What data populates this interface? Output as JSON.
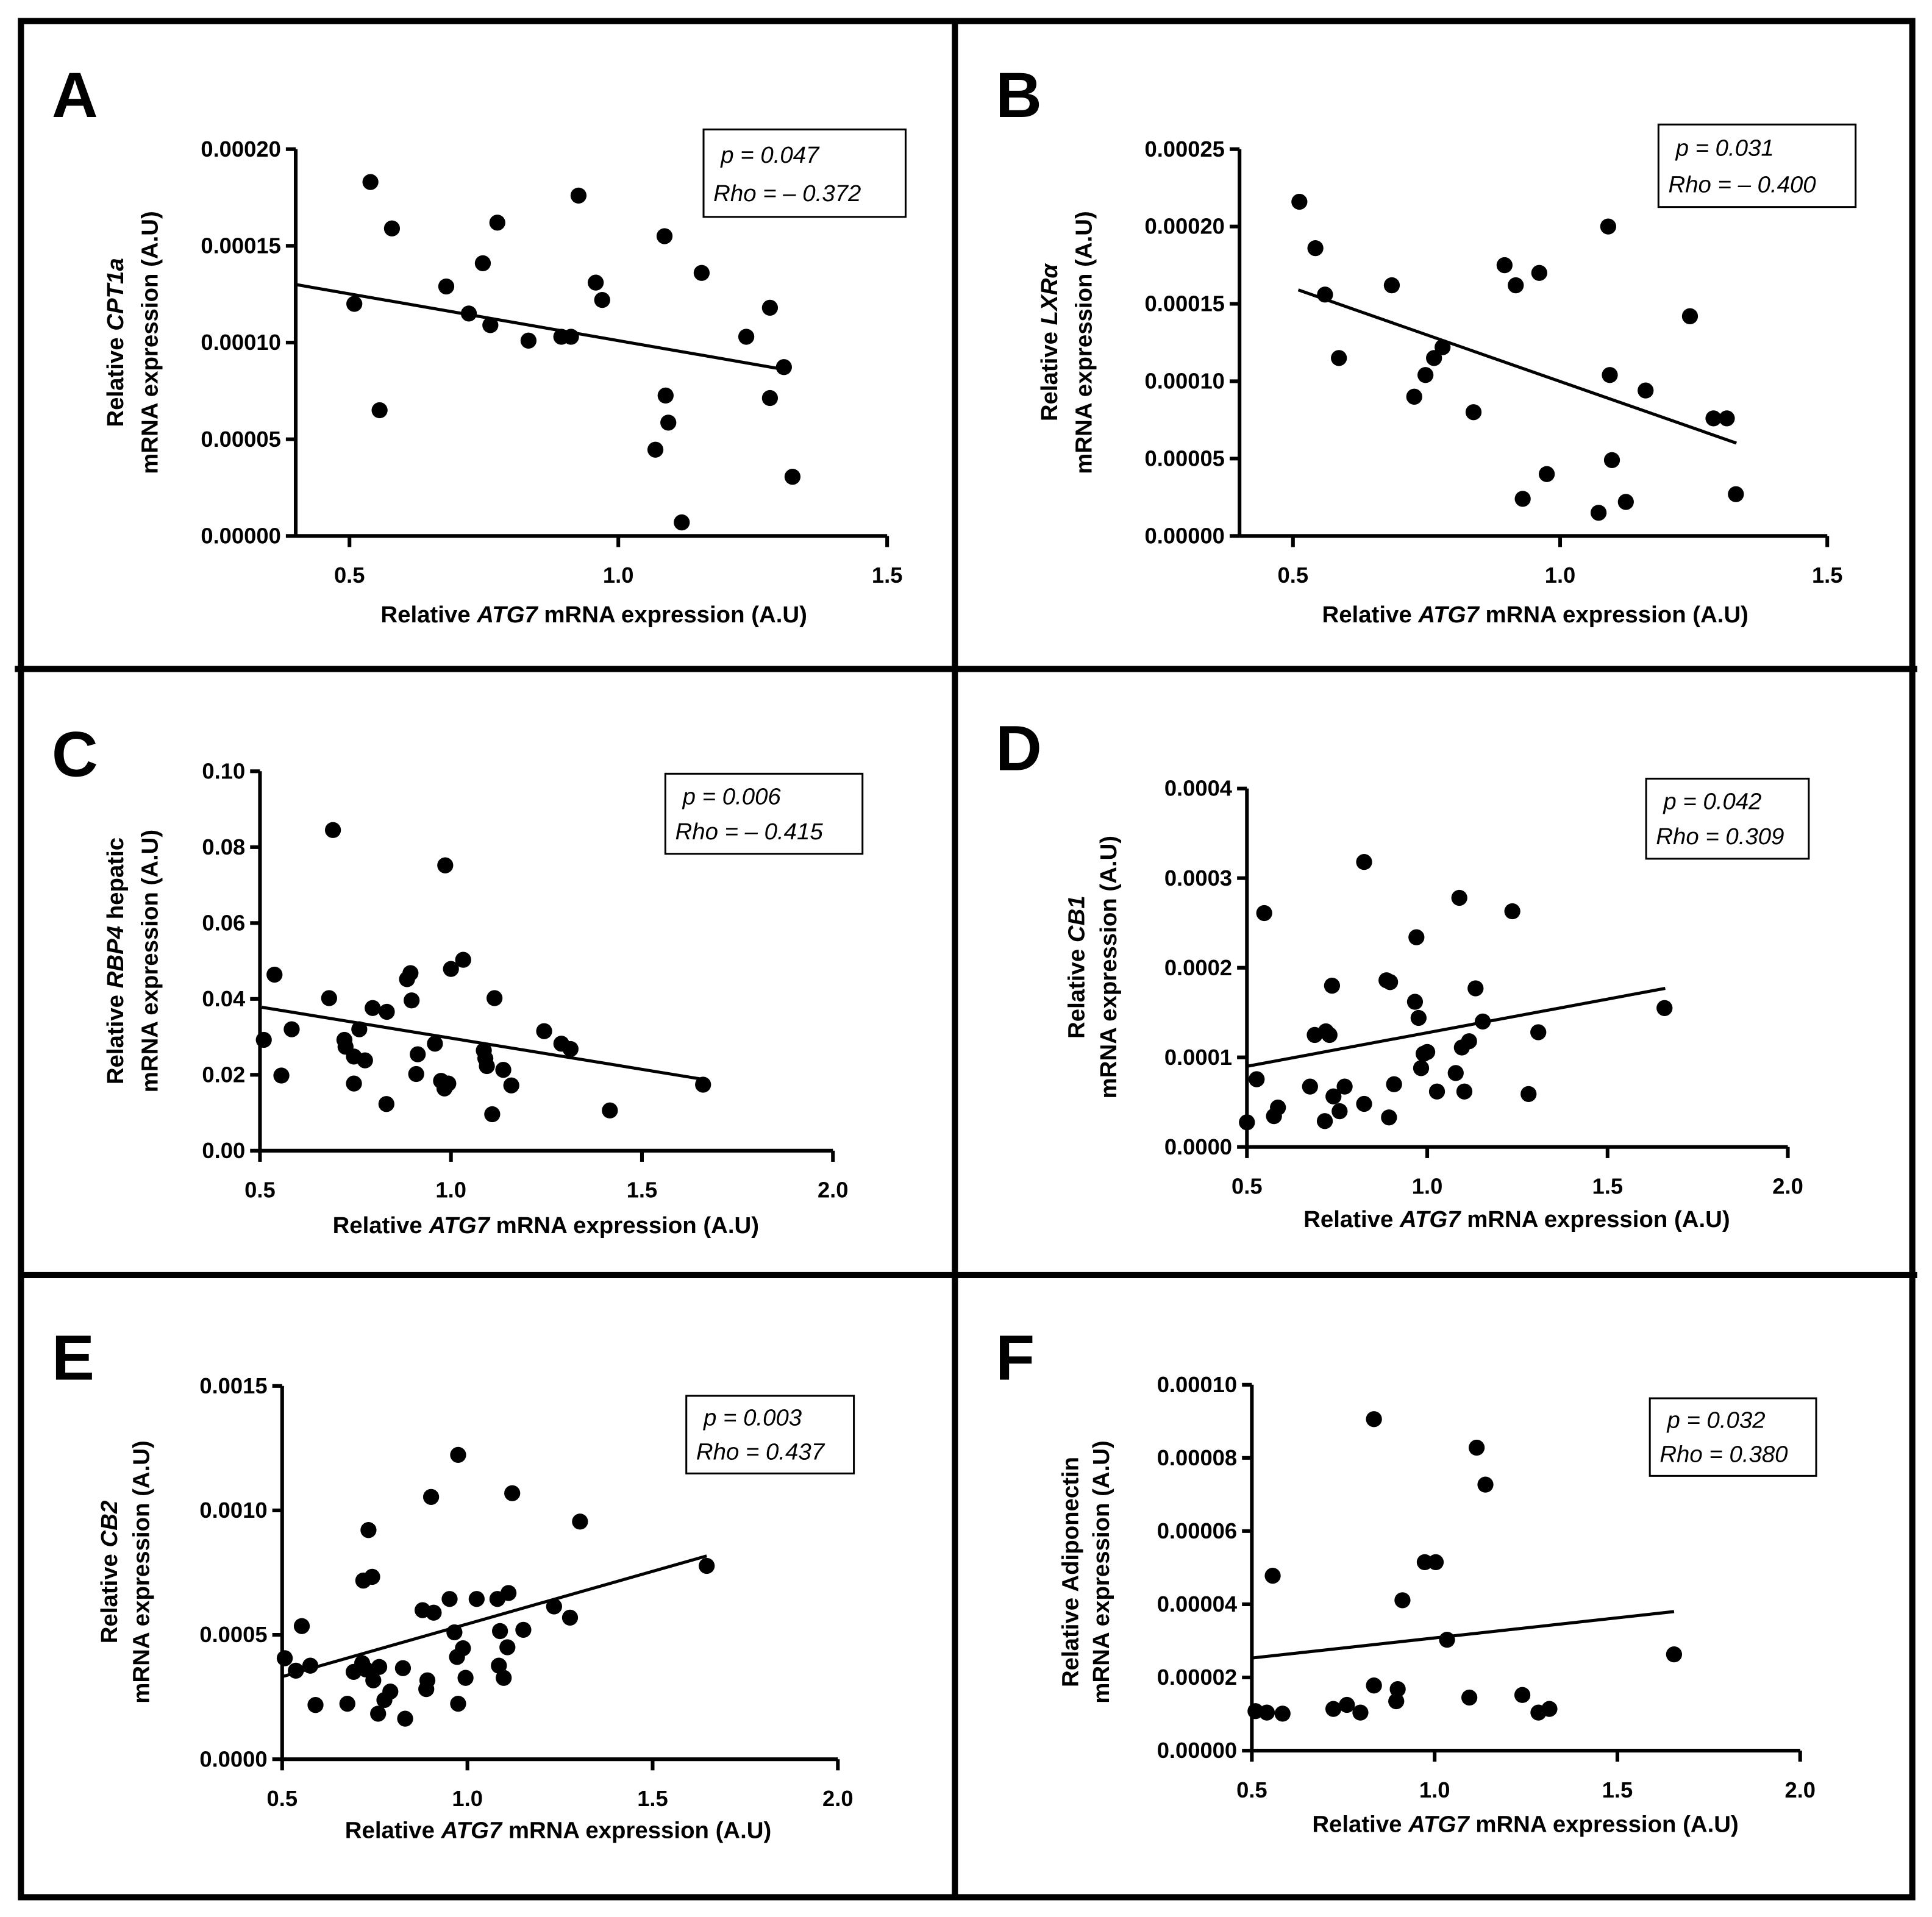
{
  "chart_data": [
    {
      "panel": "A",
      "type": "scatter",
      "xlabel": [
        "Relative ",
        "ATG7",
        " mRNA expression (A.U)"
      ],
      "ylabel": [
        [
          "Relative ",
          "CPT1a",
          ""
        ],
        "mRNA expression (A.U)"
      ],
      "xlim": [
        0.4,
        1.5
      ],
      "ylim": [
        0,
        0.0002
      ],
      "xticks": [
        "0.5",
        "1.0",
        "1.5"
      ],
      "xtick_values": [
        0.5,
        1.0,
        1.5
      ],
      "yticks": [
        "0.00000",
        "0.00005",
        "0.00010",
        "0.00015",
        "0.00020"
      ],
      "ytick_values": [
        0,
        5e-05,
        0.0001,
        0.00015,
        0.0002
      ],
      "annotation": [
        "p = 0.047",
        "Rho = – 0.372"
      ],
      "fit_line": [
        [
          0.4,
          0.00013
        ],
        [
          1.31,
          8.6e-05
        ]
      ],
      "points": [
        [
          0.539,
          0.000183
        ],
        [
          0.579,
          0.000159
        ],
        [
          0.509,
          0.00012
        ],
        [
          0.556,
          6.5e-05
        ],
        [
          0.68,
          0.000129
        ],
        [
          0.722,
          0.000115
        ],
        [
          0.748,
          0.000141
        ],
        [
          0.762,
          0.000109
        ],
        [
          0.775,
          0.000162
        ],
        [
          0.833,
          0.000101
        ],
        [
          0.894,
          0.000103
        ],
        [
          0.912,
          0.000103
        ],
        [
          0.926,
          0.000176
        ],
        [
          0.958,
          0.000131
        ],
        [
          0.97,
          0.000122
        ],
        [
          1.086,
          0.000155
        ],
        [
          1.088,
          7.26e-05
        ],
        [
          1.093,
          5.86e-05
        ],
        [
          1.069,
          4.46e-05
        ],
        [
          1.118,
          7e-06
        ],
        [
          1.155,
          0.000136
        ],
        [
          1.238,
          0.000103
        ],
        [
          1.282,
          0.000118
        ],
        [
          1.282,
          7.13e-05
        ],
        [
          1.308,
          8.73e-05
        ],
        [
          1.324,
          3.06e-05
        ]
      ]
    },
    {
      "panel": "B",
      "type": "scatter",
      "xlabel": [
        "Relative ",
        "ATG7",
        " mRNA expression (A.U)"
      ],
      "ylabel": [
        [
          "Relative ",
          "LXRα",
          ""
        ],
        "mRNA expression (A.U)"
      ],
      "xlim": [
        0.4,
        1.5
      ],
      "ylim": [
        0,
        0.00025
      ],
      "xticks": [
        "0.5",
        "1.0",
        "1.5"
      ],
      "xtick_values": [
        0.5,
        1.0,
        1.5
      ],
      "yticks": [
        "0.00000",
        "0.00005",
        "0.00010",
        "0.00015",
        "0.00020",
        "0.00025"
      ],
      "ytick_values": [
        0,
        5e-05,
        0.0001,
        0.00015,
        0.0002,
        0.00025
      ],
      "annotation": [
        "p = 0.031",
        "Rho = – 0.400"
      ],
      "fit_line": [
        [
          0.51,
          0.000159
        ],
        [
          1.33,
          6e-05
        ]
      ],
      "points": [
        [
          0.512,
          0.000216
        ],
        [
          0.542,
          0.000186
        ],
        [
          0.56,
          0.000156
        ],
        [
          0.586,
          0.000115
        ],
        [
          0.685,
          0.000162
        ],
        [
          0.727,
          9e-05
        ],
        [
          0.748,
          0.000104
        ],
        [
          0.764,
          0.000115
        ],
        [
          0.78,
          0.000122
        ],
        [
          0.838,
          8e-05
        ],
        [
          0.896,
          0.000175
        ],
        [
          0.917,
          0.000162
        ],
        [
          0.93,
          2.4e-05
        ],
        [
          0.961,
          0.00017
        ],
        [
          0.975,
          4e-05
        ],
        [
          1.072,
          1.5e-05
        ],
        [
          1.09,
          0.0002
        ],
        [
          1.093,
          0.000104
        ],
        [
          1.097,
          4.9e-05
        ],
        [
          1.123,
          2.2e-05
        ],
        [
          1.16,
          9.4e-05
        ],
        [
          1.243,
          0.000142
        ],
        [
          1.287,
          7.6e-05
        ],
        [
          1.312,
          7.6e-05
        ],
        [
          1.329,
          2.7e-05
        ]
      ]
    },
    {
      "panel": "C",
      "type": "scatter",
      "xlabel": [
        "Relative ",
        "ATG7",
        " mRNA expression (A.U)"
      ],
      "ylabel": [
        [
          "Relative ",
          "RBP4",
          " hepatic"
        ],
        "mRNA expression (A.U)"
      ],
      "xlim": [
        0.5,
        2.0
      ],
      "ylim": [
        0,
        0.1
      ],
      "xticks": [
        "0.5",
        "1.0",
        "1.5",
        "2.0"
      ],
      "xtick_values": [
        0.5,
        1.0,
        1.5,
        2.0
      ],
      "yticks": [
        "0.00",
        "0.02",
        "0.04",
        "0.06",
        "0.08",
        "0.10"
      ],
      "ytick_values": [
        0,
        0.02,
        0.04,
        0.06,
        0.08,
        0.1
      ],
      "annotation": [
        "p = 0.006",
        "Rho = – 0.415"
      ],
      "fit_line": [
        [
          0.505,
          0.0378
        ],
        [
          1.66,
          0.0188
        ]
      ],
      "points": [
        [
          0.51,
          0.0292
        ],
        [
          0.538,
          0.0464
        ],
        [
          0.556,
          0.0198
        ],
        [
          0.583,
          0.032
        ],
        [
          0.691,
          0.0845
        ],
        [
          0.681,
          0.0402
        ],
        [
          0.721,
          0.0292
        ],
        [
          0.724,
          0.0274
        ],
        [
          0.746,
          0.0248
        ],
        [
          0.746,
          0.0177
        ],
        [
          0.76,
          0.032
        ],
        [
          0.775,
          0.0238
        ],
        [
          0.795,
          0.0376
        ],
        [
          0.832,
          0.0366
        ],
        [
          0.831,
          0.0123
        ],
        [
          0.885,
          0.0452
        ],
        [
          0.894,
          0.0468
        ],
        [
          0.897,
          0.0396
        ],
        [
          0.909,
          0.0202
        ],
        [
          0.913,
          0.0254
        ],
        [
          0.958,
          0.0282
        ],
        [
          0.974,
          0.0184
        ],
        [
          0.983,
          0.0164
        ],
        [
          0.993,
          0.0177
        ],
        [
          0.985,
          0.0752
        ],
        [
          1.0,
          0.0479
        ],
        [
          1.032,
          0.0503
        ],
        [
          1.086,
          0.0264
        ],
        [
          1.09,
          0.0243
        ],
        [
          1.094,
          0.0223
        ],
        [
          1.114,
          0.0402
        ],
        [
          1.108,
          0.0096
        ],
        [
          1.137,
          0.0213
        ],
        [
          1.158,
          0.0172
        ],
        [
          1.244,
          0.0315
        ],
        [
          1.289,
          0.0282
        ],
        [
          1.313,
          0.0268
        ],
        [
          1.416,
          0.0106
        ],
        [
          1.66,
          0.0174
        ]
      ]
    },
    {
      "panel": "D",
      "type": "scatter",
      "xlabel": [
        "Relative ",
        "ATG7",
        " mRNA expression (A.U)"
      ],
      "ylabel": [
        [
          "Relative ",
          "CB1",
          ""
        ],
        "mRNA expression (A.U)"
      ],
      "xlim": [
        0.5,
        2.0
      ],
      "ylim": [
        0,
        0.0004
      ],
      "xticks": [
        "0.5",
        "1.0",
        "1.5",
        "2.0"
      ],
      "xtick_values": [
        0.5,
        1.0,
        1.5,
        2.0
      ],
      "yticks": [
        "0.0000",
        "0.0001",
        "0.0002",
        "0.0003",
        "0.0004"
      ],
      "ytick_values": [
        0,
        0.0001,
        0.0002,
        0.0003,
        0.0004
      ],
      "annotation": [
        "p = 0.042",
        "Rho = 0.309"
      ],
      "fit_line": [
        [
          0.5,
          9e-05
        ],
        [
          1.66,
          0.000177
        ]
      ],
      "points": [
        [
          0.5,
          2.75e-05
        ],
        [
          0.527,
          7.56e-05
        ],
        [
          0.548,
          0.000261
        ],
        [
          0.575,
          3.44e-05
        ],
        [
          0.586,
          4.4e-05
        ],
        [
          0.675,
          6.74e-05
        ],
        [
          0.688,
          0.000125
        ],
        [
          0.719,
          0.000129
        ],
        [
          0.729,
          0.000125
        ],
        [
          0.716,
          2.89e-05
        ],
        [
          0.736,
          0.00018
        ],
        [
          0.74,
          5.64e-05
        ],
        [
          0.757,
          3.99e-05
        ],
        [
          0.771,
          6.74e-05
        ],
        [
          0.825,
          0.000318
        ],
        [
          0.825,
          4.81e-05
        ],
        [
          0.887,
          0.000186
        ],
        [
          0.894,
          3.3e-05
        ],
        [
          0.897,
          0.000184
        ],
        [
          0.908,
          7e-05
        ],
        [
          0.97,
          0.000234
        ],
        [
          0.966,
          0.000162
        ],
        [
          0.976,
          0.000144
        ],
        [
          0.983,
          8.8e-05
        ],
        [
          0.99,
          0.000104
        ],
        [
          1.0,
          0.000106
        ],
        [
          1.027,
          6.19e-05
        ],
        [
          1.089,
          0.000278
        ],
        [
          1.079,
          8.25e-05
        ],
        [
          1.096,
          0.000111
        ],
        [
          1.103,
          6.19e-05
        ],
        [
          1.116,
          0.000118
        ],
        [
          1.134,
          0.000177
        ],
        [
          1.154,
          0.00014
        ],
        [
          1.236,
          0.000263
        ],
        [
          1.281,
          5.91e-05
        ],
        [
          1.308,
          0.000128
        ],
        [
          1.658,
          0.000155
        ]
      ]
    },
    {
      "panel": "E",
      "type": "scatter",
      "xlabel": [
        "Relative ",
        "ATG7",
        " mRNA expression (A.U)"
      ],
      "ylabel": [
        [
          "Relative ",
          "CB2",
          ""
        ],
        "mRNA expression (A.U)"
      ],
      "xlim": [
        0.5,
        2.0
      ],
      "ylim": [
        0,
        0.0015
      ],
      "xticks": [
        "0.5",
        "1.0",
        "1.5",
        "2.0"
      ],
      "xtick_values": [
        0.5,
        1.0,
        1.5,
        2.0
      ],
      "yticks": [
        "0.0000",
        "0.0005",
        "0.0010",
        "0.0015"
      ],
      "ytick_values": [
        0,
        0.0005,
        0.001,
        0.0015
      ],
      "annotation": [
        "p = 0.003",
        "Rho = 0.437"
      ],
      "fit_line": [
        [
          0.5,
          0.000332
        ],
        [
          1.646,
          0.000817
        ]
      ],
      "points": [
        [
          0.507,
          0.000406
        ],
        [
          0.537,
          0.000356
        ],
        [
          0.553,
          0.000535
        ],
        [
          0.576,
          0.000376
        ],
        [
          0.59,
          0.000218
        ],
        [
          0.676,
          0.000223
        ],
        [
          0.693,
          0.000351
        ],
        [
          0.716,
          0.000386
        ],
        [
          0.719,
          0.000718
        ],
        [
          0.726,
          0.000361
        ],
        [
          0.733,
          0.000921
        ],
        [
          0.743,
          0.000733
        ],
        [
          0.746,
          0.000317
        ],
        [
          0.759,
          0.000183
        ],
        [
          0.762,
          0.000371
        ],
        [
          0.776,
          0.000238
        ],
        [
          0.792,
          0.000272
        ],
        [
          0.826,
          0.000366
        ],
        [
          0.832,
          0.000163
        ],
        [
          0.879,
          0.000599
        ],
        [
          0.889,
          0.000282
        ],
        [
          0.892,
          0.000317
        ],
        [
          0.902,
          0.001054
        ],
        [
          0.909,
          0.000589
        ],
        [
          0.952,
          0.000644
        ],
        [
          0.965,
          0.00051
        ],
        [
          0.972,
          0.000411
        ],
        [
          0.975,
          0.000223
        ],
        [
          0.975,
          0.001223
        ],
        [
          0.988,
          0.000446
        ],
        [
          0.995,
          0.000327
        ],
        [
          1.025,
          0.000644
        ],
        [
          1.081,
          0.000644
        ],
        [
          1.085,
          0.000376
        ],
        [
          1.088,
          0.000515
        ],
        [
          1.098,
          0.000327
        ],
        [
          1.108,
          0.00045
        ],
        [
          1.111,
          0.000668
        ],
        [
          1.121,
          0.001069
        ],
        [
          1.151,
          0.00052
        ],
        [
          1.234,
          0.000614
        ],
        [
          1.277,
          0.000569
        ],
        [
          1.304,
          0.000955
        ],
        [
          1.646,
          0.000777
        ]
      ]
    },
    {
      "panel": "F",
      "type": "scatter",
      "xlabel": [
        "Relative ",
        "ATG7",
        " mRNA expression (A.U)"
      ],
      "ylabel": [
        [
          "Relative Adiponectin",
          "",
          ""
        ],
        "mRNA expression (A.U)"
      ],
      "xlim": [
        0.5,
        2.0
      ],
      "ylim": [
        0,
        0.0001
      ],
      "xticks": [
        "0.5",
        "1.0",
        "1.5",
        "2.0"
      ],
      "xtick_values": [
        0.5,
        1.0,
        1.5,
        2.0
      ],
      "yticks": [
        "0.00000",
        "0.00002",
        "0.00004",
        "0.00006",
        "0.00008",
        "0.00010"
      ],
      "ytick_values": [
        0,
        2e-05,
        4e-05,
        6e-05,
        8e-05,
        0.0001
      ],
      "annotation": [
        "p = 0.032",
        "Rho = 0.380"
      ],
      "fit_line": [
        [
          0.5,
          2.53e-05
        ],
        [
          1.655,
          3.8e-05
        ]
      ],
      "points": [
        [
          0.51,
          1.08e-05
        ],
        [
          0.541,
          1.04e-05
        ],
        [
          0.584,
          1.01e-05
        ],
        [
          0.557,
          4.78e-05
        ],
        [
          0.723,
          1.14e-05
        ],
        [
          0.76,
          1.25e-05
        ],
        [
          0.797,
          1.04e-05
        ],
        [
          0.834,
          9.06e-05
        ],
        [
          0.834,
          1.78e-05
        ],
        [
          0.895,
          1.35e-05
        ],
        [
          0.899,
          1.68e-05
        ],
        [
          0.912,
          4.11e-05
        ],
        [
          0.973,
          5.15e-05
        ],
        [
          1.003,
          5.15e-05
        ],
        [
          1.034,
          3.03e-05
        ],
        [
          1.095,
          1.45e-05
        ],
        [
          1.115,
          8.28e-05
        ],
        [
          1.139,
          7.27e-05
        ],
        [
          1.24,
          1.52e-05
        ],
        [
          1.284,
          1.04e-05
        ],
        [
          1.314,
          1.14e-05
        ],
        [
          1.655,
          2.63e-05
        ]
      ]
    }
  ]
}
